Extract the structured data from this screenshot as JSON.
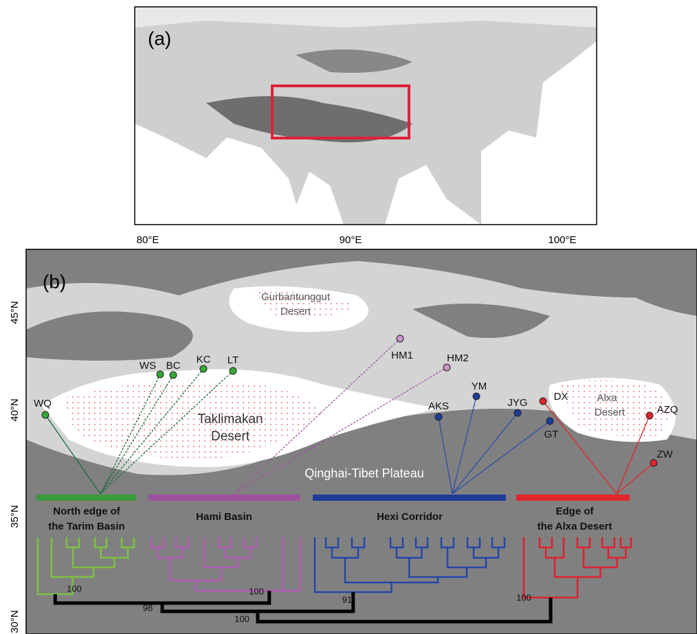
{
  "panel_a": {
    "label": "(a)",
    "longitude_labels": [
      "80°E",
      "90°E",
      "100°E"
    ]
  },
  "panel_b": {
    "label": "(b)",
    "latitude_labels": [
      "45°N",
      "40°N",
      "35°N",
      "30°N"
    ],
    "regions": [
      {
        "lines": [
          "Gurbantunggut",
          "Desert"
        ]
      },
      {
        "lines": [
          "Taklimakan",
          "Desert"
        ]
      },
      {
        "lines": [
          "Alxa",
          "Desert"
        ]
      },
      {
        "lines": [
          "Qinghai-Tibet Plateau"
        ]
      }
    ],
    "sites": [
      "WQ",
      "WS",
      "BC",
      "KC",
      "LT",
      "HM1",
      "HM2",
      "AKS",
      "YM",
      "JYG",
      "GT",
      "DX",
      "AZQ",
      "ZW"
    ],
    "groups": [
      {
        "lines": [
          "North edge of",
          "the Tarim Basin"
        ]
      },
      {
        "lines": [
          "Hami Basin"
        ]
      },
      {
        "lines": [
          "Hexi Corridor"
        ]
      },
      {
        "lines": [
          "Edge of",
          "the Alxa Desert"
        ]
      }
    ],
    "support_values": [
      100,
      100,
      91,
      98,
      100,
      100
    ]
  }
}
